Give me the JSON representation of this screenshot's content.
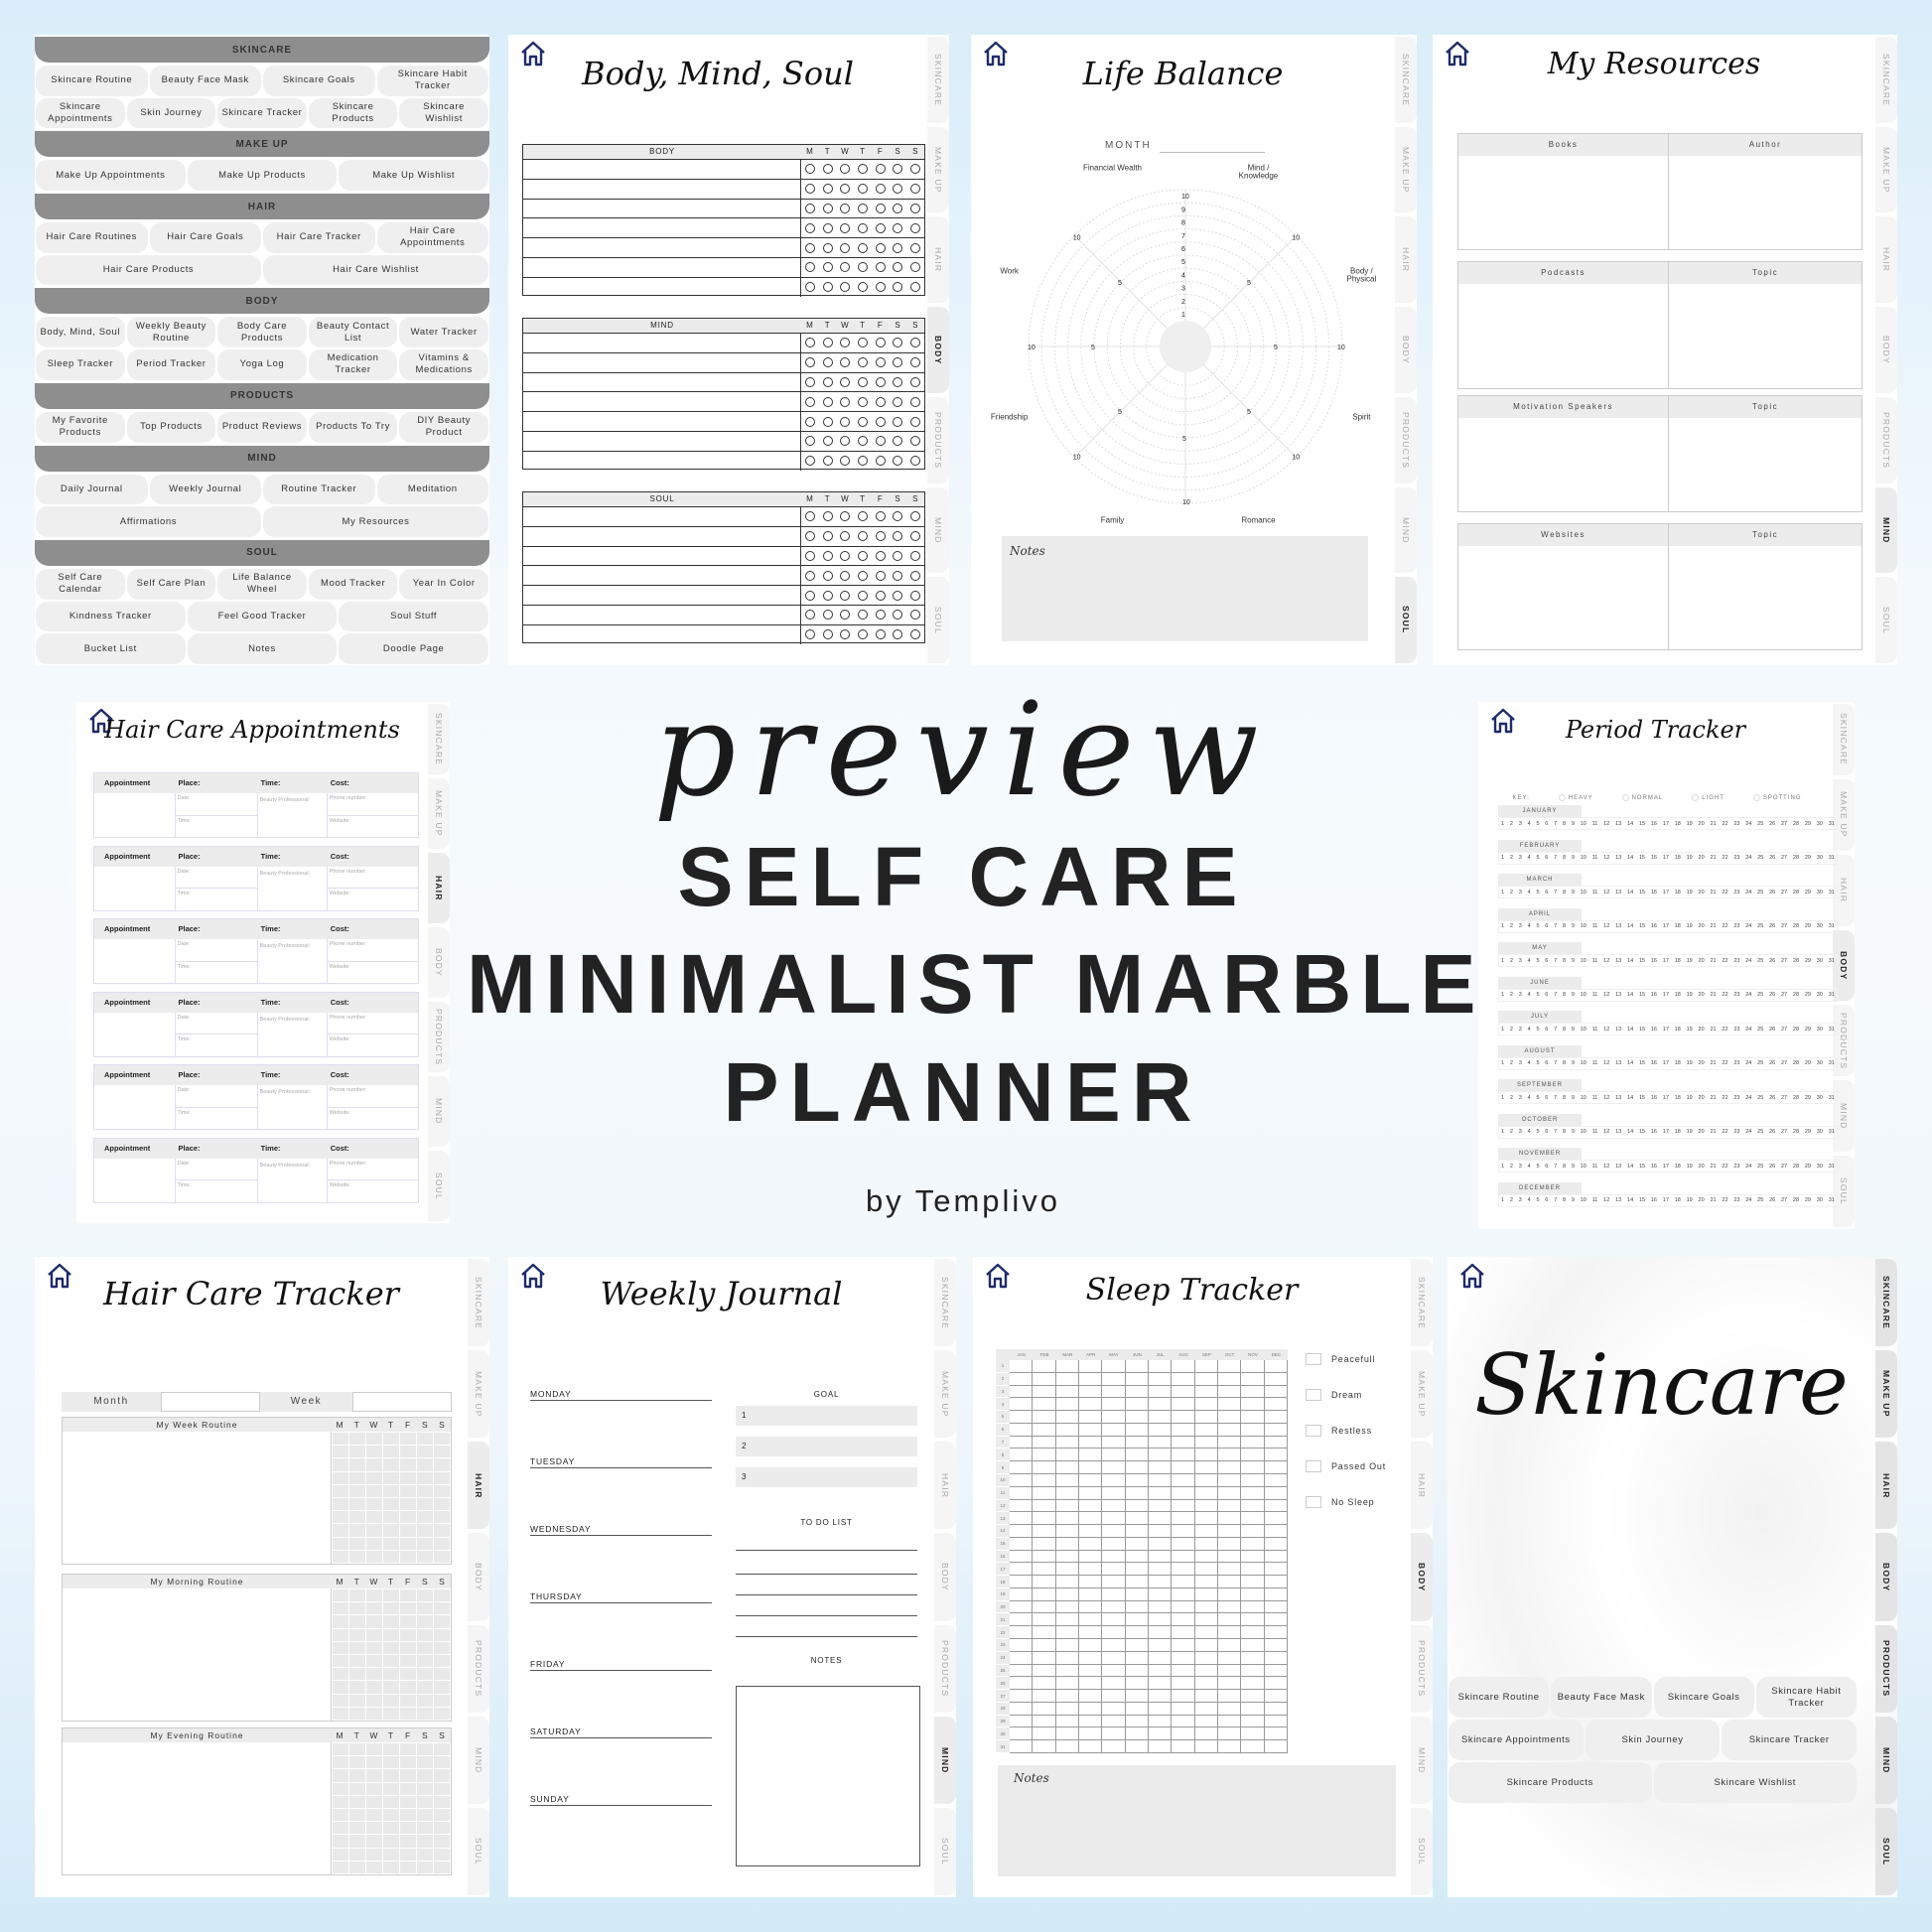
{
  "banner": {
    "preview": "preview",
    "line1": "SELF CARE",
    "line2": "MINIMALIST MARBLE",
    "line3": "PLANNER",
    "byline": "by Templivo"
  },
  "colors": {
    "home_icon": "#1f2b6b",
    "section_header": "#8e8e8e",
    "pill": "#efefef",
    "cell": "#ececec",
    "text": "#222222"
  },
  "tabs": [
    "SKINCARE",
    "MAKE UP",
    "HAIR",
    "BODY",
    "PRODUCTS",
    "MIND",
    "SOUL"
  ],
  "toc": {
    "sections": [
      {
        "title": "SKINCARE",
        "rows": [
          [
            "Skincare Routine",
            "Beauty Face Mask",
            "Skincare Goals",
            "Skincare Habit Tracker"
          ],
          [
            "Skincare Appointments",
            "Skin Journey",
            "Skincare Tracker",
            "Skincare Products",
            "Skincare Wishlist"
          ]
        ]
      },
      {
        "title": "MAKE UP",
        "rows": [
          [
            "Make Up Appointments",
            "Make Up Products",
            "Make Up Wishlist"
          ]
        ]
      },
      {
        "title": "HAIR",
        "rows": [
          [
            "Hair Care Routines",
            "Hair Care Goals",
            "Hair Care Tracker",
            "Hair Care Appointments"
          ],
          [
            "Hair Care Products",
            "Hair Care Wishlist"
          ]
        ]
      },
      {
        "title": "BODY",
        "rows": [
          [
            "Body, Mind, Soul",
            "Weekly Beauty Routine",
            "Body Care Products",
            "Beauty Contact List",
            "Water Tracker"
          ],
          [
            "Sleep Tracker",
            "Period Tracker",
            "Yoga Log",
            "Medication Tracker",
            "Vitamins & Medications"
          ]
        ]
      },
      {
        "title": "PRODUCTS",
        "rows": [
          [
            "My Favorite Products",
            "Top Products",
            "Product Reviews",
            "Products To Try",
            "DIY Beauty Product"
          ]
        ]
      },
      {
        "title": "MIND",
        "rows": [
          [
            "Daily Journal",
            "Weekly Journal",
            "Routine Tracker",
            "Meditation"
          ],
          [
            "Affirmations",
            "My Resources"
          ]
        ]
      },
      {
        "title": "SOUL",
        "rows": [
          [
            "Self Care Calendar",
            "Self Care Plan",
            "Life Balance Wheel",
            "Mood Tracker",
            "Year In Color"
          ],
          [
            "Kindness Tracker",
            "Feel Good Tracker",
            "Soul Stuff"
          ],
          [
            "Bucket List",
            "Notes",
            "Doodle Page"
          ]
        ]
      }
    ]
  },
  "body_mind_soul": {
    "title": "Body, Mind, Soul",
    "active_tab": "BODY",
    "sections": [
      "BODY",
      "MIND",
      "SOUL"
    ],
    "weekdays": [
      "M",
      "T",
      "W",
      "T",
      "F",
      "S",
      "S"
    ]
  },
  "life_balance": {
    "title": "Life Balance",
    "active_tab": "SOUL",
    "month_label": "MONTH",
    "categories": [
      "Mind / Knowledge",
      "Body / Physical",
      "Spirit",
      "Romance",
      "Family",
      "Friendship",
      "Work",
      "Financial Wealth"
    ],
    "scale_labels": [
      "1",
      "2",
      "3",
      "4",
      "5",
      "6",
      "7",
      "8",
      "9",
      "10"
    ],
    "spoke_labels": [
      "5",
      "10"
    ],
    "notes_label": "Notes"
  },
  "resources": {
    "title": "My Resources",
    "active_tab": "MIND",
    "sections": [
      {
        "left": "Books",
        "right": "Author"
      },
      {
        "left": "Podcasts",
        "right": "Topic"
      },
      {
        "left": "Motivation Speakers",
        "right": "Topic"
      },
      {
        "left": "Websites",
        "right": "Topic"
      }
    ]
  },
  "hair_appointments": {
    "title": "Hair Care Appointments",
    "active_tab": "HAIR",
    "headers": [
      "Appointment",
      "Place:",
      "Time:",
      "Cost:"
    ],
    "fields": {
      "date": "Date:",
      "time": "Time:",
      "professional": "Beauty Professional:",
      "phone": "Phone number:",
      "website": "Website:"
    },
    "count": 6
  },
  "period_tracker": {
    "title": "Period Tracker",
    "active_tab": "BODY",
    "key_label": "KEY:",
    "key": [
      "HEAVY",
      "NORMAL",
      "LIGHT",
      "SPOTTING"
    ],
    "months": [
      "JANUARY",
      "FEBRUARY",
      "MARCH",
      "APRIL",
      "MAY",
      "JUNE",
      "JULY",
      "AUGUST",
      "SEPTEMBER",
      "OCTOBER",
      "NOVEMBER",
      "DECEMBER"
    ],
    "days": [
      "1",
      "2",
      "3",
      "4",
      "5",
      "6",
      "7",
      "8",
      "9",
      "10",
      "11",
      "12",
      "13",
      "14",
      "15",
      "16",
      "17",
      "18",
      "19",
      "20",
      "21",
      "22",
      "23",
      "24",
      "25",
      "26",
      "27",
      "28",
      "29",
      "30",
      "31"
    ]
  },
  "hair_tracker": {
    "title": "Hair Care Tracker",
    "active_tab": "HAIR",
    "month_label": "Month",
    "week_label": "Week",
    "routines": [
      "My Week Routine",
      "My Morning Routine",
      "My Evening Routine"
    ],
    "weekdays": [
      "M",
      "T",
      "W",
      "T",
      "F",
      "S",
      "S"
    ]
  },
  "weekly_journal": {
    "title": "Weekly Journal",
    "active_tab": "MIND",
    "days": [
      "MONDAY",
      "TUESDAY",
      "WEDNESDAY",
      "THURSDAY",
      "FRIDAY",
      "SATURDAY",
      "SUNDAY"
    ],
    "goal_label": "GOAL",
    "goals": [
      "1",
      "2",
      "3"
    ],
    "todo_label": "TO DO LIST",
    "notes_label": "NOTES"
  },
  "sleep_tracker": {
    "title": "Sleep Tracker",
    "active_tab": "BODY",
    "months": [
      "JAN",
      "FEB",
      "MAR",
      "APR",
      "MAY",
      "JUN",
      "JUL",
      "AUG",
      "SEP",
      "OCT",
      "NOV",
      "DEC"
    ],
    "days": [
      "1",
      "2",
      "3",
      "4",
      "5",
      "6",
      "7",
      "8",
      "9",
      "10",
      "11",
      "12",
      "13",
      "14",
      "15",
      "16",
      "17",
      "18",
      "19",
      "20",
      "21",
      "22",
      "23",
      "24",
      "25",
      "26",
      "27",
      "28",
      "29",
      "30",
      "31"
    ],
    "legend": [
      "Peacefull",
      "Dream",
      "Restless",
      "Passed Out",
      "No Sleep"
    ],
    "notes_label": "Notes"
  },
  "skincare": {
    "title": "Skincare",
    "rows": [
      [
        "Skincare Routine",
        "Beauty Face Mask",
        "Skincare Goals",
        "Skincare Habit Tracker"
      ],
      [
        "Skincare Appointments",
        "Skin Journey",
        "Skincare Tracker"
      ],
      [
        "Skincare Products",
        "Skincare Wishlist"
      ]
    ]
  }
}
